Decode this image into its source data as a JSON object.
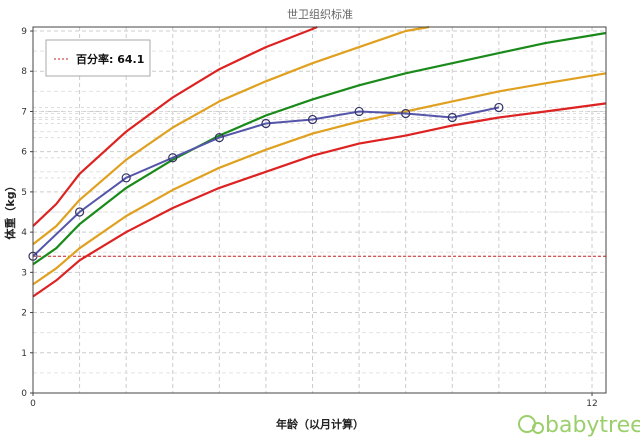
{
  "chart_data": {
    "type": "line",
    "title": "世卫组织标准",
    "xlabel": "年龄（以月计算）",
    "ylabel": "体重（kg）",
    "xlim": [
      0,
      12.3
    ],
    "ylim": [
      0,
      9.1
    ],
    "x_ticks": [
      {
        "value": 0,
        "label": "0"
      },
      {
        "value": 12,
        "label": "12"
      }
    ],
    "y_ticks": [
      0,
      1,
      2,
      3,
      4,
      5,
      6,
      7,
      8,
      9
    ],
    "grid": true,
    "legend": {
      "position": "top-left",
      "entries": [
        {
          "label": "百分率: 64.1",
          "color": "#cc2222",
          "style": "dashed"
        }
      ]
    },
    "reference_line": {
      "y": 3.4,
      "color": "#cc2222",
      "style": "dashed"
    },
    "percentile_curves": [
      {
        "color": "#dd2222",
        "points": [
          [
            0,
            2.4
          ],
          [
            0.5,
            2.8
          ],
          [
            1,
            3.3
          ],
          [
            2,
            4.0
          ],
          [
            3,
            4.6
          ],
          [
            4,
            5.1
          ],
          [
            5,
            5.5
          ],
          [
            6,
            5.9
          ],
          [
            7,
            6.2
          ],
          [
            8,
            6.4
          ],
          [
            9,
            6.65
          ],
          [
            10,
            6.85
          ],
          [
            11,
            7.0
          ],
          [
            12.3,
            7.2
          ]
        ]
      },
      {
        "color": "#e0a020",
        "points": [
          [
            0,
            2.7
          ],
          [
            0.5,
            3.1
          ],
          [
            1,
            3.6
          ],
          [
            2,
            4.4
          ],
          [
            3,
            5.05
          ],
          [
            4,
            5.6
          ],
          [
            5,
            6.05
          ],
          [
            6,
            6.45
          ],
          [
            7,
            6.75
          ],
          [
            8,
            7.0
          ],
          [
            9,
            7.25
          ],
          [
            10,
            7.5
          ],
          [
            11,
            7.7
          ],
          [
            12.3,
            7.95
          ]
        ]
      },
      {
        "color": "#1a8a1a",
        "points": [
          [
            0,
            3.2
          ],
          [
            0.5,
            3.6
          ],
          [
            1,
            4.2
          ],
          [
            2,
            5.1
          ],
          [
            3,
            5.8
          ],
          [
            4,
            6.4
          ],
          [
            5,
            6.9
          ],
          [
            6,
            7.3
          ],
          [
            7,
            7.65
          ],
          [
            8,
            7.95
          ],
          [
            9,
            8.2
          ],
          [
            10,
            8.45
          ],
          [
            11,
            8.7
          ],
          [
            12.3,
            8.95
          ]
        ]
      },
      {
        "color": "#e0a020",
        "points": [
          [
            0,
            3.7
          ],
          [
            0.5,
            4.15
          ],
          [
            1,
            4.8
          ],
          [
            2,
            5.8
          ],
          [
            3,
            6.6
          ],
          [
            4,
            7.25
          ],
          [
            5,
            7.75
          ],
          [
            6,
            8.2
          ],
          [
            7,
            8.6
          ],
          [
            8,
            9.0
          ],
          [
            8.5,
            9.1
          ]
        ]
      },
      {
        "color": "#dd2222",
        "points": [
          [
            0,
            4.15
          ],
          [
            0.5,
            4.7
          ],
          [
            1,
            5.45
          ],
          [
            2,
            6.5
          ],
          [
            3,
            7.35
          ],
          [
            4,
            8.05
          ],
          [
            5,
            8.6
          ],
          [
            6,
            9.05
          ],
          [
            6.1,
            9.1
          ]
        ]
      }
    ],
    "series": [
      {
        "color": "#5555aa",
        "marker": "circle",
        "x": [
          0,
          1,
          2,
          3,
          4,
          5,
          6,
          7,
          8,
          9,
          10
        ],
        "y": [
          3.4,
          4.5,
          5.35,
          5.85,
          6.35,
          6.7,
          6.8,
          7.0,
          6.95,
          6.85,
          7.1
        ]
      }
    ]
  },
  "logo": {
    "text": "babytree",
    "color": "#9bcf6b"
  }
}
